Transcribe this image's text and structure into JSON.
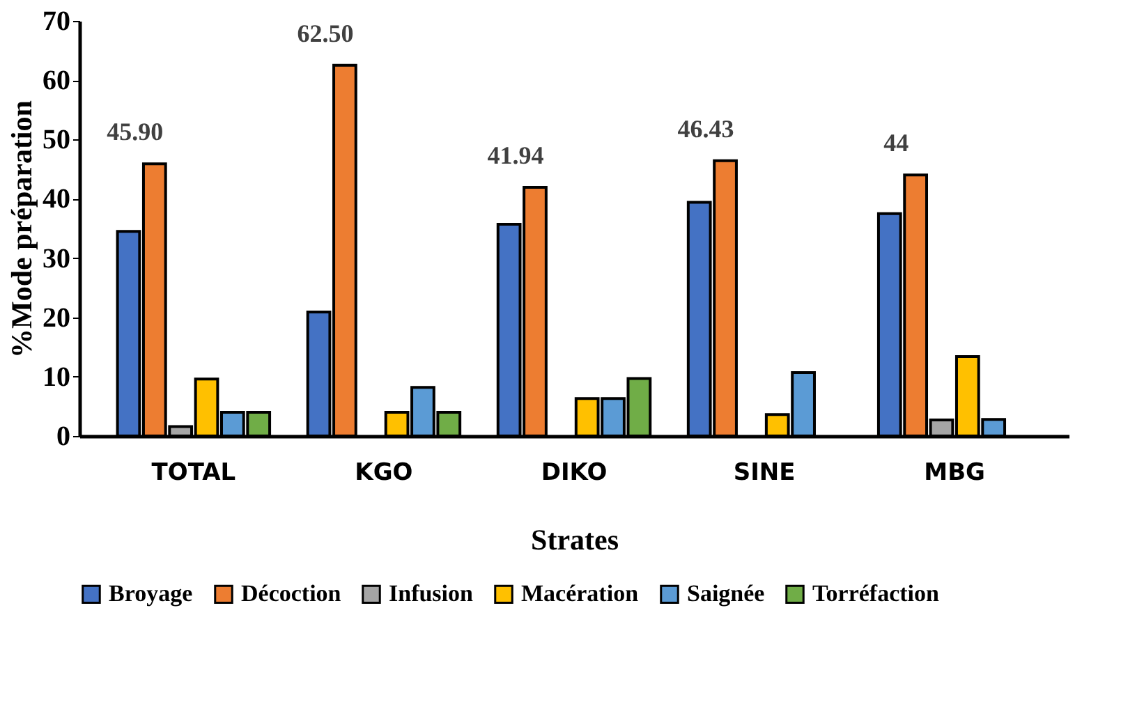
{
  "chart_data": {
    "type": "bar",
    "xlabel": "Strates",
    "ylabel": "%Mode préparation",
    "categories": [
      "TOTAL",
      "KGO",
      "DIKO",
      "SINE",
      "MBG"
    ],
    "series": [
      {
        "name": "Broyage",
        "color": "#4472c4",
        "values": [
          34.5,
          20.9,
          35.7,
          39.4,
          37.5
        ]
      },
      {
        "name": "Décoction",
        "color": "#ed7d31",
        "values": [
          45.9,
          62.5,
          41.94,
          46.43,
          44
        ],
        "value_labels": [
          "45.90",
          "62.50",
          "41.94",
          "46.43",
          "44"
        ]
      },
      {
        "name": "Infusion",
        "color": "#a5a5a5",
        "values": [
          1.6,
          null,
          null,
          null,
          2.7
        ]
      },
      {
        "name": "Macération",
        "color": "#ffc000",
        "values": [
          9.6,
          4.0,
          6.3,
          3.6,
          13.4
        ]
      },
      {
        "name": "Saignée",
        "color": "#5b9bd5",
        "values": [
          4.0,
          8.2,
          6.3,
          10.7,
          2.8
        ]
      },
      {
        "name": "Torréfaction",
        "color": "#70ad47",
        "values": [
          4.0,
          4.0,
          9.7,
          null,
          null
        ]
      }
    ],
    "ylim": [
      0,
      70
    ],
    "yticks": [
      0,
      10,
      20,
      30,
      40,
      50,
      60,
      70
    ],
    "grid": false,
    "legend": "bottom"
  }
}
